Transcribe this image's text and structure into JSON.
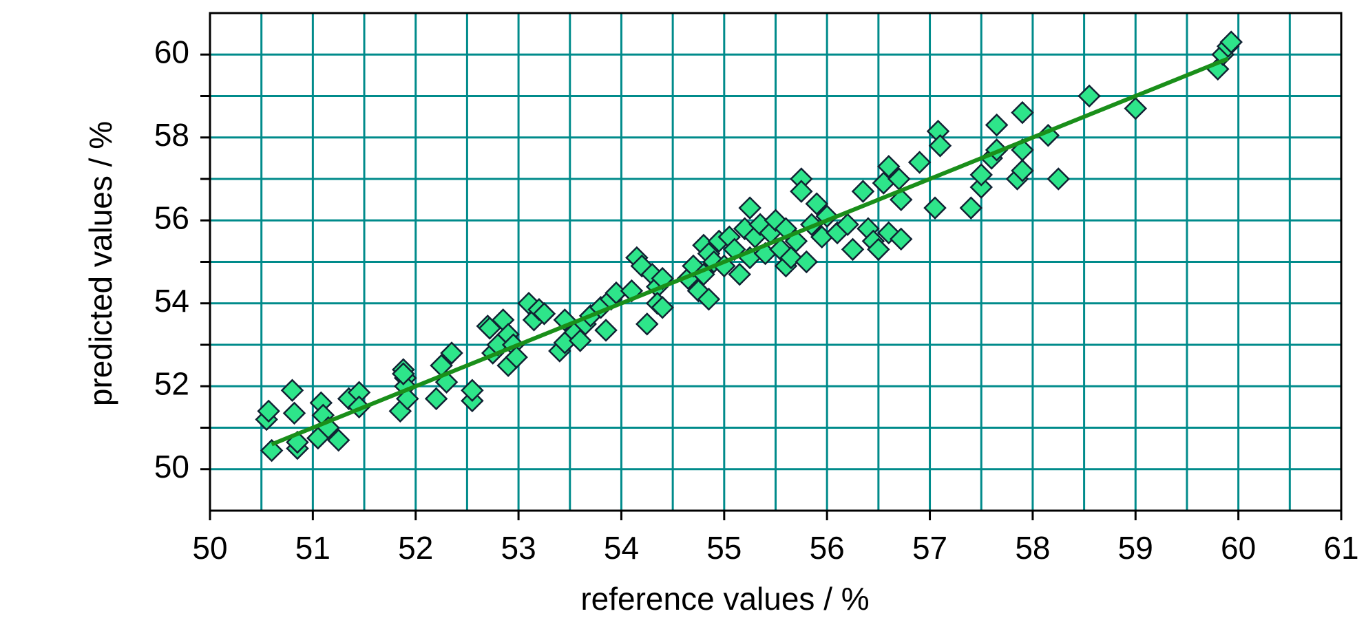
{
  "chart_data": {
    "type": "scatter",
    "x_label": "reference values / %",
    "y_label": "predicted values / %",
    "xlim": [
      50,
      61
    ],
    "ylim": [
      49,
      61
    ],
    "xticks": [
      50,
      51,
      52,
      53,
      54,
      55,
      56,
      57,
      58,
      59,
      60,
      61
    ],
    "yticks": [
      50,
      52,
      54,
      56,
      58,
      60
    ],
    "yminor": [
      51,
      53,
      55,
      57,
      59
    ],
    "xgrid": [
      50.5,
      51,
      51.5,
      52,
      52.5,
      53,
      53.5,
      54,
      54.5,
      55,
      55.5,
      56,
      56.5,
      57,
      57.5,
      58,
      58.5,
      59,
      59.5,
      60,
      60.5
    ],
    "ygrid": [
      50,
      51,
      52,
      53,
      54,
      55,
      56,
      57,
      58,
      59,
      60
    ],
    "grid": true,
    "grid_color": "#008b8b",
    "color": "#2ee58a",
    "x": [
      50.55,
      50.57,
      50.6,
      50.8,
      50.82,
      50.85,
      50.85,
      51.05,
      51.08,
      51.1,
      51.15,
      51.25,
      51.35,
      51.45,
      51.45,
      51.85,
      51.88,
      51.9,
      51.9,
      51.92,
      51.88,
      52.2,
      52.25,
      52.3,
      52.35,
      52.55,
      52.55,
      52.7,
      52.72,
      52.75,
      52.8,
      52.85,
      52.9,
      52.9,
      52.95,
      52.98,
      53.1,
      53.15,
      53.2,
      53.25,
      53.4,
      53.45,
      53.45,
      53.55,
      53.6,
      53.65,
      53.7,
      53.8,
      53.85,
      53.9,
      53.95,
      54.1,
      54.15,
      54.2,
      54.25,
      54.3,
      54.35,
      54.35,
      54.4,
      54.4,
      54.65,
      54.7,
      54.75,
      54.8,
      54.8,
      54.85,
      54.85,
      54.9,
      54.95,
      55.0,
      55.05,
      55.1,
      55.15,
      55.2,
      55.25,
      55.25,
      55.3,
      55.35,
      55.4,
      55.45,
      55.5,
      55.55,
      55.6,
      55.6,
      55.65,
      55.7,
      55.75,
      55.75,
      55.8,
      55.85,
      55.9,
      55.95,
      56.0,
      56.1,
      56.2,
      56.25,
      56.35,
      56.4,
      56.45,
      56.5,
      56.55,
      56.6,
      56.6,
      56.7,
      56.72,
      56.72,
      56.9,
      57.05,
      57.08,
      57.1,
      57.4,
      57.5,
      57.5,
      57.6,
      57.65,
      57.65,
      57.85,
      57.9,
      57.9,
      57.9,
      58.15,
      58.25,
      58.55,
      59.0,
      59.8,
      59.85,
      59.9,
      59.93
    ],
    "values": [
      51.2,
      51.4,
      50.45,
      51.9,
      51.35,
      50.5,
      50.65,
      50.75,
      51.6,
      51.3,
      51.0,
      50.7,
      51.7,
      51.85,
      51.5,
      51.4,
      52.4,
      52.2,
      52.0,
      51.7,
      52.3,
      51.7,
      52.5,
      52.1,
      52.8,
      51.65,
      51.9,
      53.45,
      53.4,
      52.8,
      53.0,
      53.6,
      52.5,
      53.25,
      53.0,
      52.7,
      54.0,
      53.6,
      53.85,
      53.75,
      52.85,
      53.05,
      53.6,
      53.3,
      53.1,
      53.5,
      53.7,
      53.9,
      53.35,
      54.1,
      54.25,
      54.3,
      55.1,
      54.9,
      53.5,
      54.7,
      54.4,
      54.0,
      53.9,
      54.6,
      54.6,
      54.9,
      54.3,
      55.4,
      54.7,
      54.1,
      55.2,
      55.0,
      55.5,
      54.9,
      55.6,
      55.3,
      54.7,
      55.8,
      56.3,
      55.1,
      55.6,
      55.9,
      55.2,
      55.7,
      56.0,
      55.3,
      54.9,
      55.8,
      55.1,
      55.5,
      57.0,
      56.7,
      55.0,
      55.9,
      56.4,
      55.6,
      56.1,
      55.7,
      55.9,
      55.3,
      56.7,
      55.8,
      55.5,
      55.3,
      56.9,
      55.7,
      57.3,
      57.0,
      56.5,
      55.55,
      57.4,
      56.3,
      58.15,
      57.8,
      56.3,
      56.8,
      57.1,
      57.5,
      57.7,
      58.3,
      57.0,
      57.2,
      58.6,
      57.7,
      58.05,
      57.0,
      59.0,
      58.7,
      59.65,
      60.0,
      60.2,
      60.3
    ],
    "fit": {
      "x": [
        50.6,
        59.9
      ],
      "values": [
        50.6,
        59.9
      ],
      "color": "#1a8f1a"
    }
  }
}
